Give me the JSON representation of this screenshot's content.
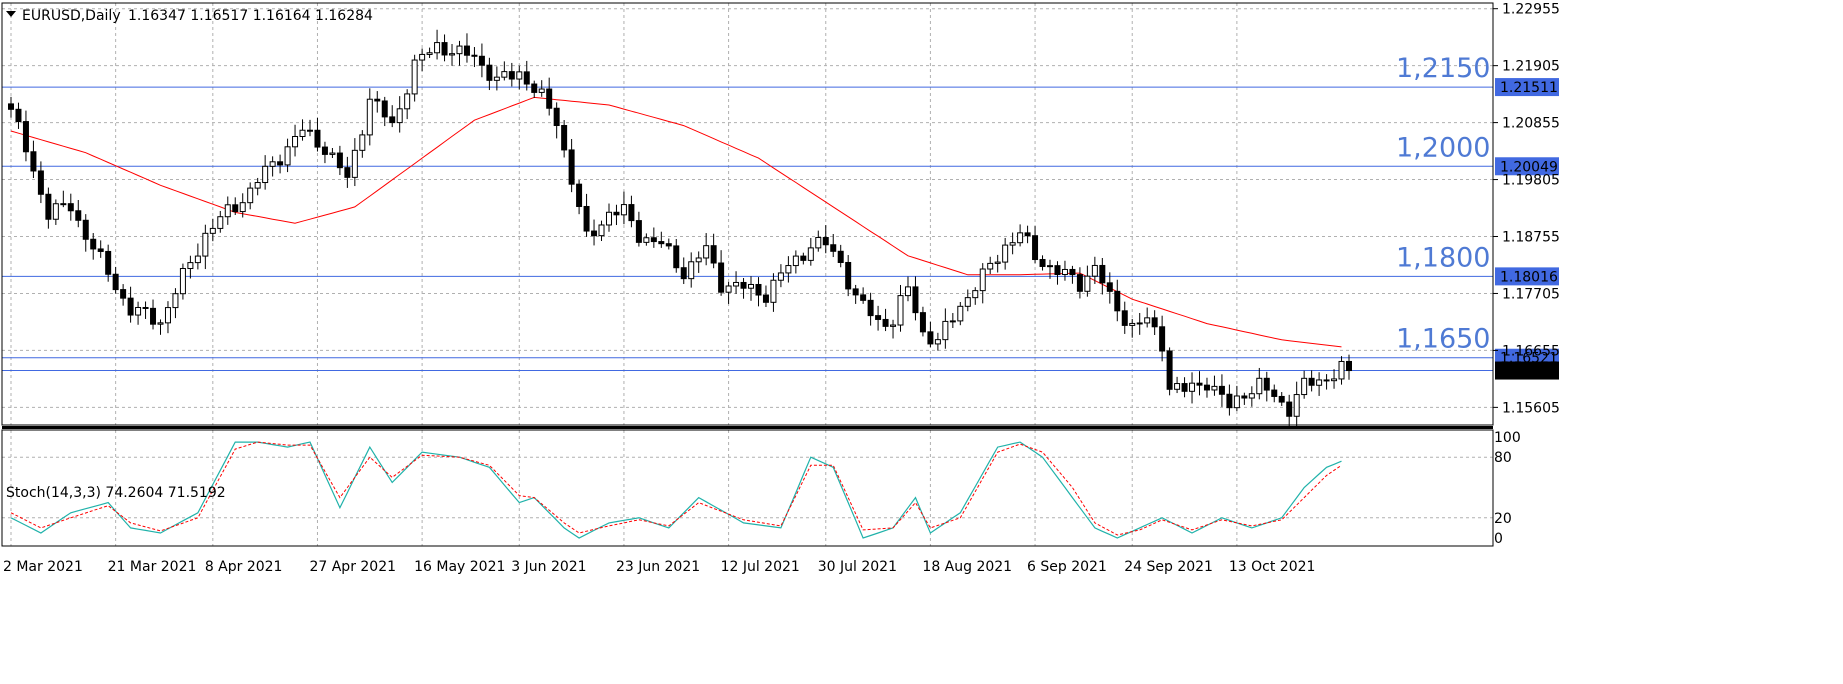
{
  "chart_data": {
    "type": "candlestick",
    "header": {
      "symbol_tf": "EURUSD,Daily",
      "ohlc": "1.16347 1.16517 1.16164 1.16284"
    },
    "colors": {
      "background": "#ffffff",
      "grid": "#b0b0b0",
      "candle": "#000000",
      "level_lines": "#4169e1",
      "level_labels": "#4f7ad4",
      "ma": "#ff0000",
      "stoch_main": "#20b2aa",
      "stoch_signal": "#ff0000"
    },
    "price_axis": {
      "ylim": [
        1.1528,
        1.2306
      ],
      "ticks": [
        "1.22955",
        "1.21905",
        "1.20855",
        "1.19805",
        "1.18755",
        "1.17705",
        "1.16655",
        "1.15605"
      ]
    },
    "x_axis": {
      "labels": [
        {
          "index": 0,
          "text": "2 Mar 2021"
        },
        {
          "index": 14,
          "text": "21 Mar 2021"
        },
        {
          "index": 27,
          "text": "8 Apr 2021"
        },
        {
          "index": 41,
          "text": "27 Apr 2021"
        },
        {
          "index": 55,
          "text": "16 May 2021"
        },
        {
          "index": 68,
          "text": "3 Jun 2021"
        },
        {
          "index": 82,
          "text": "23 Jun 2021"
        },
        {
          "index": 96,
          "text": "12 Jul 2021"
        },
        {
          "index": 109,
          "text": "30 Jul 2021"
        },
        {
          "index": 123,
          "text": "18 Aug 2021"
        },
        {
          "index": 137,
          "text": "6 Sep 2021"
        },
        {
          "index": 150,
          "text": "24 Sep 2021"
        },
        {
          "index": 164,
          "text": "13 Oct 2021"
        }
      ]
    },
    "levels": [
      {
        "price": 1.2151,
        "label": "1,2150",
        "badge": "1.21511"
      },
      {
        "price": 1.2005,
        "label": "1,2000",
        "badge": "1.20049"
      },
      {
        "price": 1.1802,
        "label": "1,1800",
        "badge": "1.18016"
      },
      {
        "price": 1.1652,
        "label": "1,1650",
        "badge": "1.16521"
      }
    ],
    "current_price": {
      "price": 1.16284,
      "badge": "1.16284"
    },
    "candles_anchor_closes": [
      [
        0,
        1.211
      ],
      [
        5,
        1.192
      ],
      [
        8,
        1.193
      ],
      [
        12,
        1.183
      ],
      [
        16,
        1.174
      ],
      [
        20,
        1.172
      ],
      [
        23,
        1.18
      ],
      [
        26,
        1.188
      ],
      [
        29,
        1.192
      ],
      [
        32,
        1.196
      ],
      [
        35,
        1.201
      ],
      [
        39,
        1.207
      ],
      [
        42,
        1.204
      ],
      [
        45,
        1.198
      ],
      [
        48,
        1.213
      ],
      [
        51,
        1.208
      ],
      [
        54,
        1.219
      ],
      [
        57,
        1.223
      ],
      [
        60,
        1.221
      ],
      [
        62,
        1.221
      ],
      [
        65,
        1.216
      ],
      [
        68,
        1.218
      ],
      [
        71,
        1.213
      ],
      [
        73,
        1.209
      ],
      [
        75,
        1.198
      ],
      [
        77,
        1.187
      ],
      [
        80,
        1.192
      ],
      [
        82,
        1.192
      ],
      [
        84,
        1.188
      ],
      [
        87,
        1.186
      ],
      [
        90,
        1.181
      ],
      [
        93,
        1.185
      ],
      [
        95,
        1.179
      ],
      [
        98,
        1.178
      ],
      [
        101,
        1.177
      ],
      [
        104,
        1.182
      ],
      [
        107,
        1.186
      ],
      [
        109,
        1.186
      ],
      [
        111,
        1.183
      ],
      [
        113,
        1.176
      ],
      [
        116,
        1.172
      ],
      [
        118,
        1.172
      ],
      [
        120,
        1.178
      ],
      [
        122,
        1.17
      ],
      [
        124,
        1.168
      ],
      [
        127,
        1.175
      ],
      [
        130,
        1.18
      ],
      [
        133,
        1.186
      ],
      [
        135,
        1.188
      ],
      [
        137,
        1.184
      ],
      [
        140,
        1.181
      ],
      [
        143,
        1.179
      ],
      [
        145,
        1.182
      ],
      [
        147,
        1.176
      ],
      [
        150,
        1.171
      ],
      [
        152,
        1.172
      ],
      [
        154,
        1.168
      ],
      [
        155,
        1.16
      ],
      [
        157,
        1.159
      ],
      [
        160,
        1.161
      ],
      [
        163,
        1.156
      ],
      [
        165,
        1.159
      ],
      [
        167,
        1.16
      ],
      [
        169,
        1.158
      ],
      [
        171,
        1.156
      ],
      [
        173,
        1.16
      ],
      [
        175,
        1.161
      ],
      [
        178,
        1.163
      ],
      [
        179,
        1.16284
      ]
    ],
    "ma_anchor": [
      [
        0,
        1.207
      ],
      [
        10,
        1.203
      ],
      [
        20,
        1.197
      ],
      [
        30,
        1.192
      ],
      [
        38,
        1.19
      ],
      [
        46,
        1.193
      ],
      [
        55,
        1.202
      ],
      [
        62,
        1.209
      ],
      [
        70,
        1.2132
      ],
      [
        80,
        1.2118
      ],
      [
        90,
        1.208
      ],
      [
        100,
        1.202
      ],
      [
        110,
        1.193
      ],
      [
        120,
        1.184
      ],
      [
        128,
        1.1805
      ],
      [
        135,
        1.1805
      ],
      [
        143,
        1.1808
      ],
      [
        150,
        1.176
      ],
      [
        160,
        1.1715
      ],
      [
        170,
        1.1685
      ],
      [
        178,
        1.1672
      ]
    ],
    "stochastic": {
      "label": "Stoch(14,3,3) 74.2604 71.5192",
      "ylim": [
        0,
        100
      ],
      "ticks": [
        "100",
        "80",
        "20",
        "0"
      ],
      "main_anchor": [
        [
          0,
          20
        ],
        [
          4,
          5
        ],
        [
          8,
          25
        ],
        [
          13,
          35
        ],
        [
          16,
          10
        ],
        [
          20,
          5
        ],
        [
          25,
          25
        ],
        [
          30,
          95
        ],
        [
          33,
          95
        ],
        [
          37,
          90
        ],
        [
          40,
          95
        ],
        [
          44,
          30
        ],
        [
          48,
          90
        ],
        [
          51,
          55
        ],
        [
          55,
          85
        ],
        [
          60,
          80
        ],
        [
          64,
          70
        ],
        [
          68,
          35
        ],
        [
          70,
          40
        ],
        [
          74,
          10
        ],
        [
          76,
          0
        ],
        [
          80,
          15
        ],
        [
          84,
          20
        ],
        [
          88,
          10
        ],
        [
          92,
          40
        ],
        [
          98,
          15
        ],
        [
          103,
          10
        ],
        [
          107,
          80
        ],
        [
          110,
          70
        ],
        [
          114,
          0
        ],
        [
          118,
          10
        ],
        [
          121,
          40
        ],
        [
          123,
          5
        ],
        [
          127,
          25
        ],
        [
          132,
          90
        ],
        [
          135,
          95
        ],
        [
          138,
          80
        ],
        [
          142,
          40
        ],
        [
          145,
          10
        ],
        [
          148,
          0
        ],
        [
          151,
          10
        ],
        [
          154,
          20
        ],
        [
          158,
          5
        ],
        [
          162,
          20
        ],
        [
          166,
          10
        ],
        [
          170,
          20
        ],
        [
          173,
          50
        ],
        [
          176,
          70
        ],
        [
          178,
          76
        ]
      ],
      "signal_anchor": [
        [
          0,
          25
        ],
        [
          4,
          10
        ],
        [
          8,
          20
        ],
        [
          13,
          32
        ],
        [
          16,
          15
        ],
        [
          20,
          7
        ],
        [
          25,
          20
        ],
        [
          30,
          88
        ],
        [
          33,
          95
        ],
        [
          37,
          92
        ],
        [
          40,
          92
        ],
        [
          44,
          40
        ],
        [
          48,
          80
        ],
        [
          51,
          60
        ],
        [
          55,
          82
        ],
        [
          60,
          80
        ],
        [
          64,
          72
        ],
        [
          68,
          42
        ],
        [
          70,
          40
        ],
        [
          74,
          15
        ],
        [
          76,
          5
        ],
        [
          80,
          12
        ],
        [
          84,
          18
        ],
        [
          88,
          12
        ],
        [
          92,
          35
        ],
        [
          98,
          18
        ],
        [
          103,
          12
        ],
        [
          107,
          72
        ],
        [
          110,
          72
        ],
        [
          114,
          8
        ],
        [
          118,
          10
        ],
        [
          121,
          35
        ],
        [
          123,
          10
        ],
        [
          127,
          20
        ],
        [
          132,
          85
        ],
        [
          135,
          93
        ],
        [
          138,
          85
        ],
        [
          142,
          50
        ],
        [
          145,
          15
        ],
        [
          148,
          3
        ],
        [
          151,
          8
        ],
        [
          154,
          18
        ],
        [
          158,
          8
        ],
        [
          162,
          18
        ],
        [
          166,
          12
        ],
        [
          170,
          18
        ],
        [
          173,
          40
        ],
        [
          176,
          62
        ],
        [
          178,
          72
        ]
      ]
    }
  }
}
